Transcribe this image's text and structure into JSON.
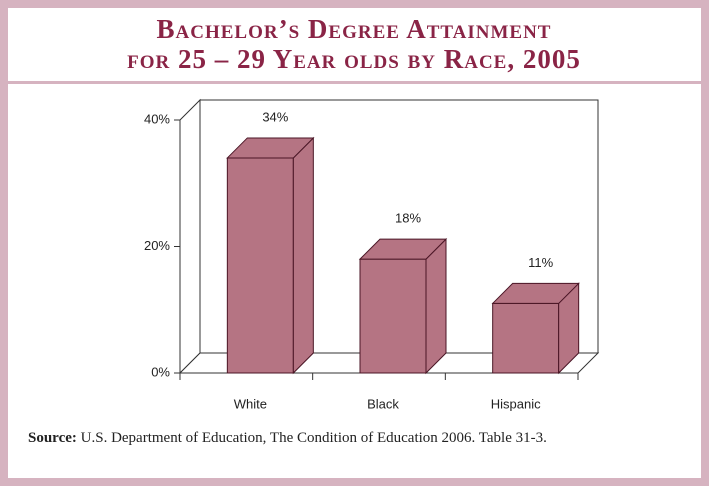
{
  "chart_data": {
    "type": "bar3d",
    "title": [
      "Bachelor’s Degree Attainment",
      "for 25 – 29 Year olds by Race, 2005"
    ],
    "categories": [
      "White",
      "Black",
      "Hispanic"
    ],
    "values": [
      34,
      18,
      11
    ],
    "value_labels": [
      "34%",
      "18%",
      "11%"
    ],
    "color": "#b57483",
    "ylim": [
      0,
      40
    ],
    "yticks": [
      {
        "value": 0,
        "label": "0%"
      },
      {
        "value": 20,
        "label": "20%"
      },
      {
        "value": 40,
        "label": "40%"
      }
    ],
    "source_label": "Source:",
    "source": "U.S. Department of Education, The Condition of Education 2006. Table 31-3."
  }
}
